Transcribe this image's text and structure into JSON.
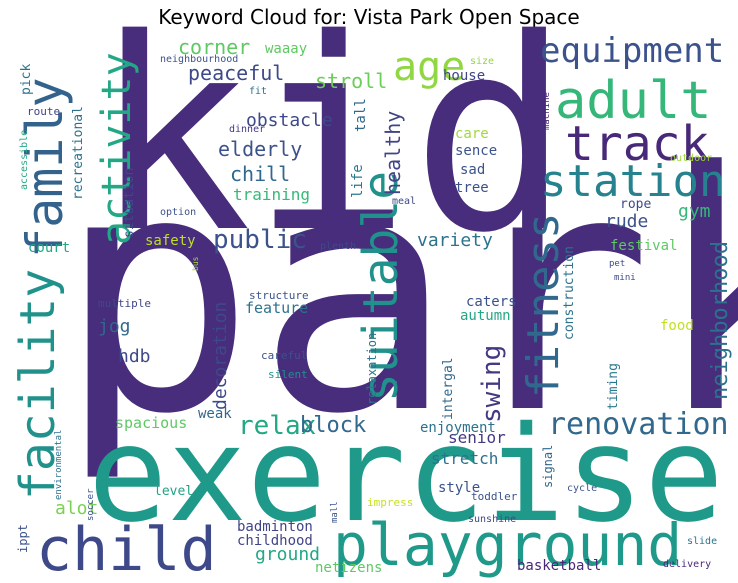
{
  "chart_data": {
    "type": "wordcloud",
    "title": "Keyword Cloud for: Vista Park Open Space",
    "palette": "viridis",
    "words": [
      {
        "text": "park",
        "weight": 100,
        "color": "#472d7b"
      },
      {
        "text": "kid",
        "weight": 84,
        "color": "#472d7b"
      },
      {
        "text": "exercise",
        "weight": 74,
        "color": "#1f9a8a"
      },
      {
        "text": "child",
        "weight": 38,
        "color": "#3e4989"
      },
      {
        "text": "playground",
        "weight": 38,
        "color": "#1f9a8a"
      },
      {
        "text": "adult",
        "weight": 32,
        "color": "#35b779"
      },
      {
        "text": "track",
        "weight": 32,
        "color": "#482878"
      },
      {
        "text": "family",
        "weight": 30,
        "color": "#33638d"
      },
      {
        "text": "station",
        "weight": 30,
        "color": "#26828e"
      },
      {
        "text": "facility",
        "weight": 30,
        "color": "#21918c"
      },
      {
        "text": "suitable",
        "weight": 28,
        "color": "#21918c"
      },
      {
        "text": "activity",
        "weight": 26,
        "color": "#22a884"
      },
      {
        "text": "fitness",
        "weight": 26,
        "color": "#31688e"
      },
      {
        "text": "age",
        "weight": 24,
        "color": "#90d743"
      },
      {
        "text": "equipment",
        "weight": 22,
        "color": "#3b528b"
      },
      {
        "text": "renovation",
        "weight": 20,
        "color": "#31688e"
      },
      {
        "text": "relax",
        "weight": 16,
        "color": "#22a884"
      },
      {
        "text": "public",
        "weight": 16,
        "color": "#3b528b"
      },
      {
        "text": "swing",
        "weight": 16,
        "color": "#443983"
      },
      {
        "text": "neighborhood",
        "weight": 14,
        "color": "#2c728e"
      },
      {
        "text": "block",
        "weight": 14,
        "color": "#31688e"
      },
      {
        "text": "healthy",
        "weight": 14,
        "color": "#414487"
      },
      {
        "text": "peaceful",
        "weight": 13,
        "color": "#3e4989"
      },
      {
        "text": "corner",
        "weight": 13,
        "color": "#5ec962"
      },
      {
        "text": "stroll",
        "weight": 13,
        "color": "#6ccd5a"
      },
      {
        "text": "elderly",
        "weight": 13,
        "color": "#3b528b"
      },
      {
        "text": "chill",
        "weight": 13,
        "color": "#31688e"
      },
      {
        "text": "obstacle",
        "weight": 12,
        "color": "#3e4989"
      },
      {
        "text": "gym",
        "weight": 12,
        "color": "#35b779"
      },
      {
        "text": "rude",
        "weight": 12,
        "color": "#3b528b"
      },
      {
        "text": "decoration",
        "weight": 12,
        "color": "#3e4989"
      },
      {
        "text": "jog",
        "weight": 12,
        "color": "#31688e"
      },
      {
        "text": "hdb",
        "weight": 12,
        "color": "#3e4989"
      },
      {
        "text": "variety",
        "weight": 12,
        "color": "#2c728e"
      },
      {
        "text": "ground",
        "weight": 12,
        "color": "#22a884"
      },
      {
        "text": "senior",
        "weight": 11,
        "color": "#443983"
      },
      {
        "text": "stretch",
        "weight": 11,
        "color": "#2c728e"
      },
      {
        "text": "alot",
        "weight": 12,
        "color": "#7ad151"
      },
      {
        "text": "training",
        "weight": 11,
        "color": "#38b977"
      },
      {
        "text": "waaay",
        "weight": 10,
        "color": "#5ec962"
      },
      {
        "text": "house",
        "weight": 10,
        "color": "#414487"
      },
      {
        "text": "tall",
        "weight": 10,
        "color": "#31688e"
      },
      {
        "text": "care",
        "weight": 10,
        "color": "#a0da39"
      },
      {
        "text": "sence",
        "weight": 10,
        "color": "#3b528b"
      },
      {
        "text": "sad",
        "weight": 10,
        "color": "#3b528b"
      },
      {
        "text": "tree",
        "weight": 10,
        "color": "#3b528b"
      },
      {
        "text": "life",
        "weight": 9,
        "color": "#2a788e"
      },
      {
        "text": "recreational",
        "weight": 9,
        "color": "#2c728e"
      },
      {
        "text": "situation",
        "weight": 9,
        "color": "#3e4989"
      },
      {
        "text": "pick",
        "weight": 9,
        "color": "#2c728e"
      },
      {
        "text": "route",
        "weight": 7,
        "color": "#414487"
      },
      {
        "text": "accessible",
        "weight": 7,
        "color": "#22a884"
      },
      {
        "text": "safety",
        "weight": 10,
        "color": "#bddf26"
      },
      {
        "text": "court",
        "weight": 10,
        "color": "#22a884"
      },
      {
        "text": "festival",
        "weight": 10,
        "color": "#5ec962"
      },
      {
        "text": "rope",
        "weight": 9,
        "color": "#3e4989"
      },
      {
        "text": "construction",
        "weight": 9,
        "color": "#2c728e"
      },
      {
        "text": "feature",
        "weight": 10,
        "color": "#2c728e"
      },
      {
        "text": "structure",
        "weight": 8,
        "color": "#3b528b"
      },
      {
        "text": "caters",
        "weight": 9,
        "color": "#3b528b"
      },
      {
        "text": "autumn",
        "weight": 10,
        "color": "#22a884"
      },
      {
        "text": "food",
        "weight": 10,
        "color": "#c2df23"
      },
      {
        "text": "multiple",
        "weight": 8,
        "color": "#3e4989"
      },
      {
        "text": "relaxation",
        "weight": 8,
        "color": "#2c728e"
      },
      {
        "text": "intergal",
        "weight": 9,
        "color": "#31688e"
      },
      {
        "text": "timing",
        "weight": 9,
        "color": "#2a788e"
      },
      {
        "text": "weak",
        "weight": 10,
        "color": "#31688e"
      },
      {
        "text": "spacious",
        "weight": 10,
        "color": "#5ec962"
      },
      {
        "text": "enjoyment",
        "weight": 10,
        "color": "#2c728e"
      },
      {
        "text": "signal",
        "weight": 8,
        "color": "#31688e"
      },
      {
        "text": "style",
        "weight": 10,
        "color": "#3b528b"
      },
      {
        "text": "level",
        "weight": 10,
        "color": "#20a386"
      },
      {
        "text": "badminton",
        "weight": 10,
        "color": "#414487"
      },
      {
        "text": "childhood",
        "weight": 10,
        "color": "#414487"
      },
      {
        "text": "basketball",
        "weight": 10,
        "color": "#482878"
      },
      {
        "text": "netizens",
        "weight": 10,
        "color": "#5ec962"
      },
      {
        "text": "careful",
        "weight": 8,
        "color": "#3b528b"
      },
      {
        "text": "silent",
        "weight": 8,
        "color": "#21918c"
      },
      {
        "text": "plenth",
        "weight": 7,
        "color": "#3e4989"
      },
      {
        "text": "option",
        "weight": 7,
        "color": "#3b528b"
      },
      {
        "text": "dinner",
        "weight": 7,
        "color": "#443983"
      },
      {
        "text": "fit",
        "weight": 7,
        "color": "#2c728e"
      },
      {
        "text": "neighbourhood",
        "weight": 7,
        "color": "#3b528b"
      },
      {
        "text": "size",
        "weight": 7,
        "color": "#8fd744"
      },
      {
        "text": "machine",
        "weight": 6,
        "color": "#482878"
      },
      {
        "text": "outdoor",
        "weight": 7,
        "color": "#a0da39"
      },
      {
        "text": "meal",
        "weight": 7,
        "color": "#3e4989"
      },
      {
        "text": "pet",
        "weight": 7,
        "color": "#3e4989"
      },
      {
        "text": "mini",
        "weight": 7,
        "color": "#3e4989"
      },
      {
        "text": "bus",
        "weight": 6,
        "color": "#a5db36"
      },
      {
        "text": "environmental",
        "weight": 7,
        "color": "#2c728e"
      },
      {
        "text": "soccer",
        "weight": 7,
        "color": "#3b528b"
      },
      {
        "text": "ippt",
        "weight": 9,
        "color": "#3b528b"
      },
      {
        "text": "toddler",
        "weight": 7,
        "color": "#3b528b"
      },
      {
        "text": "impress",
        "weight": 7,
        "color": "#c8e020"
      },
      {
        "text": "mall",
        "weight": 6,
        "color": "#3b528b"
      },
      {
        "text": "sunshine",
        "weight": 7,
        "color": "#3e4989"
      },
      {
        "text": "cycle",
        "weight": 7,
        "color": "#3b528b"
      },
      {
        "text": "slide",
        "weight": 7,
        "color": "#2c728e"
      },
      {
        "text": "delivery",
        "weight": 7,
        "color": "#482878"
      }
    ]
  }
}
